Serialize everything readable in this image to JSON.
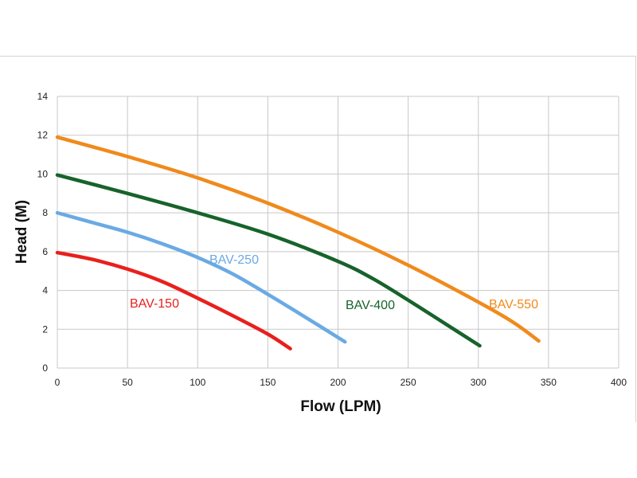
{
  "chart_data": {
    "type": "line",
    "xlabel": "Flow (LPM)",
    "ylabel": "Head (M)",
    "xlim": [
      0,
      400
    ],
    "ylim": [
      0,
      14
    ],
    "xticks": [
      0,
      50,
      100,
      150,
      200,
      250,
      300,
      350,
      400
    ],
    "yticks": [
      0,
      2,
      4,
      6,
      8,
      10,
      12,
      14
    ],
    "grid": true,
    "series": [
      {
        "name": "BAV-150",
        "color": "#e8201c",
        "x": [
          0,
          25,
          50,
          75,
          100,
          125,
          150,
          166
        ],
        "y": [
          5.95,
          5.6,
          5.1,
          4.45,
          3.6,
          2.7,
          1.75,
          1.0
        ]
      },
      {
        "name": "BAV-250",
        "color": "#6aaae4",
        "x": [
          0,
          25,
          50,
          75,
          100,
          125,
          150,
          175,
          205
        ],
        "y": [
          8.0,
          7.5,
          7.0,
          6.4,
          5.7,
          4.85,
          3.8,
          2.7,
          1.35
        ]
      },
      {
        "name": "BAV-400",
        "color": "#17632b",
        "x": [
          0,
          50,
          100,
          150,
          200,
          225,
          250,
          275,
          301
        ],
        "y": [
          9.95,
          9.0,
          8.0,
          6.9,
          5.5,
          4.6,
          3.5,
          2.35,
          1.15
        ]
      },
      {
        "name": "BAV-550",
        "color": "#f08a1c",
        "x": [
          0,
          50,
          100,
          150,
          200,
          250,
          300,
          325,
          343
        ],
        "y": [
          11.9,
          10.9,
          9.8,
          8.5,
          7.0,
          5.3,
          3.4,
          2.35,
          1.4
        ]
      }
    ]
  }
}
